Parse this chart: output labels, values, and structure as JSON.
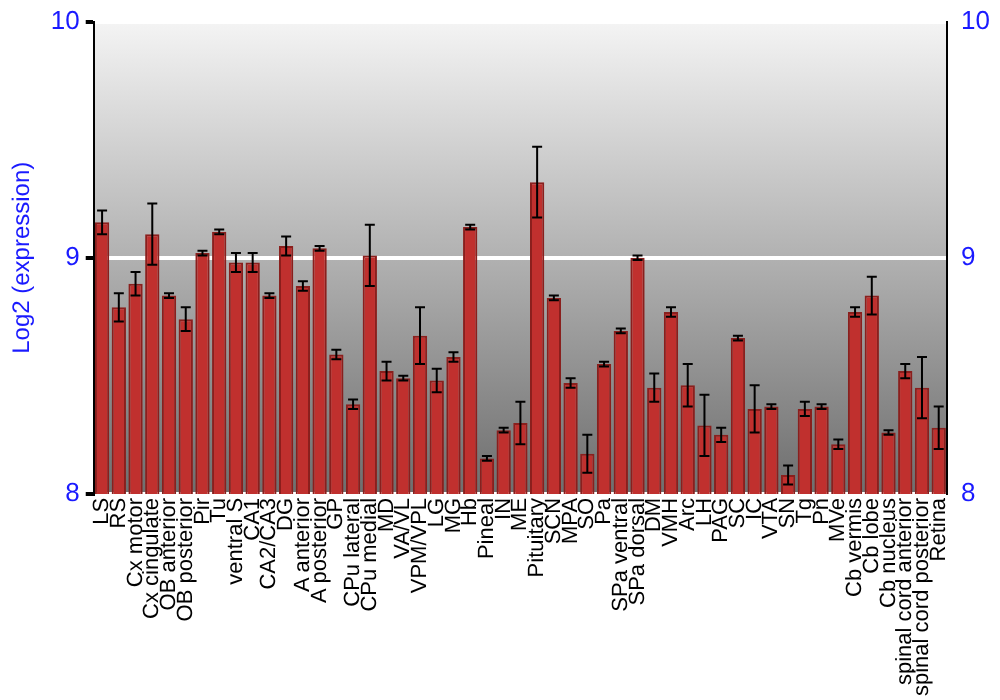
{
  "chart_data": {
    "type": "bar",
    "ylabel": "Log2 (expression)",
    "categories": [
      "LS",
      "RS",
      "Cx motor",
      "Cx cingulate",
      "OB anterior",
      "OB posterior",
      "Pir",
      "Tu",
      "ventral S",
      "CA1",
      "CA2/CA3",
      "DG",
      "A anterior",
      "A posterior",
      "GP",
      "CPu lateral",
      "CPu medial",
      "MD",
      "VA/VL",
      "VPM/VPL",
      "LG",
      "MG",
      "Hb",
      "Pineal",
      "IN",
      "ME",
      "Pituitary",
      "SCN",
      "MPA",
      "SO",
      "Pa",
      "SPa ventral",
      "SPa dorsal",
      "DM",
      "VMH",
      "Arc",
      "LH",
      "PAG",
      "SC",
      "IC",
      "VTA",
      "SN",
      "Tg",
      "Pn",
      "MVe",
      "Cb vermis",
      "Cb lobe",
      "Cb nucleus",
      "spinal cord anterior",
      "spinal cord posterior",
      "Retina"
    ],
    "values": [
      9.15,
      8.79,
      8.89,
      9.1,
      8.84,
      8.74,
      9.02,
      9.11,
      8.98,
      8.98,
      8.84,
      9.05,
      8.88,
      9.04,
      8.59,
      8.38,
      9.01,
      8.52,
      8.49,
      8.67,
      8.48,
      8.58,
      9.13,
      8.15,
      8.27,
      8.3,
      9.32,
      8.83,
      8.47,
      8.17,
      8.55,
      8.69,
      9.0,
      8.45,
      8.77,
      8.46,
      8.29,
      8.25,
      8.66,
      8.36,
      8.37,
      8.08,
      8.36,
      8.37,
      8.21,
      8.77,
      8.84,
      8.26,
      8.52,
      8.45,
      8.28
    ],
    "errors": [
      0.05,
      0.06,
      0.05,
      0.13,
      0.01,
      0.05,
      0.01,
      0.01,
      0.04,
      0.04,
      0.01,
      0.04,
      0.02,
      0.01,
      0.02,
      0.02,
      0.13,
      0.04,
      0.01,
      0.12,
      0.05,
      0.02,
      0.01,
      0.01,
      0.01,
      0.09,
      0.15,
      0.01,
      0.02,
      0.08,
      0.01,
      0.01,
      0.01,
      0.06,
      0.02,
      0.09,
      0.13,
      0.03,
      0.01,
      0.1,
      0.01,
      0.04,
      0.03,
      0.01,
      0.02,
      0.02,
      0.08,
      0.01,
      0.03,
      0.13,
      0.09
    ],
    "color": "#c0302e",
    "ylim": [
      8,
      10
    ],
    "yticks": [
      8,
      9,
      10
    ],
    "y2lim": [
      8,
      10
    ],
    "y2ticks": [
      8,
      9,
      10
    ],
    "grid": "y"
  }
}
